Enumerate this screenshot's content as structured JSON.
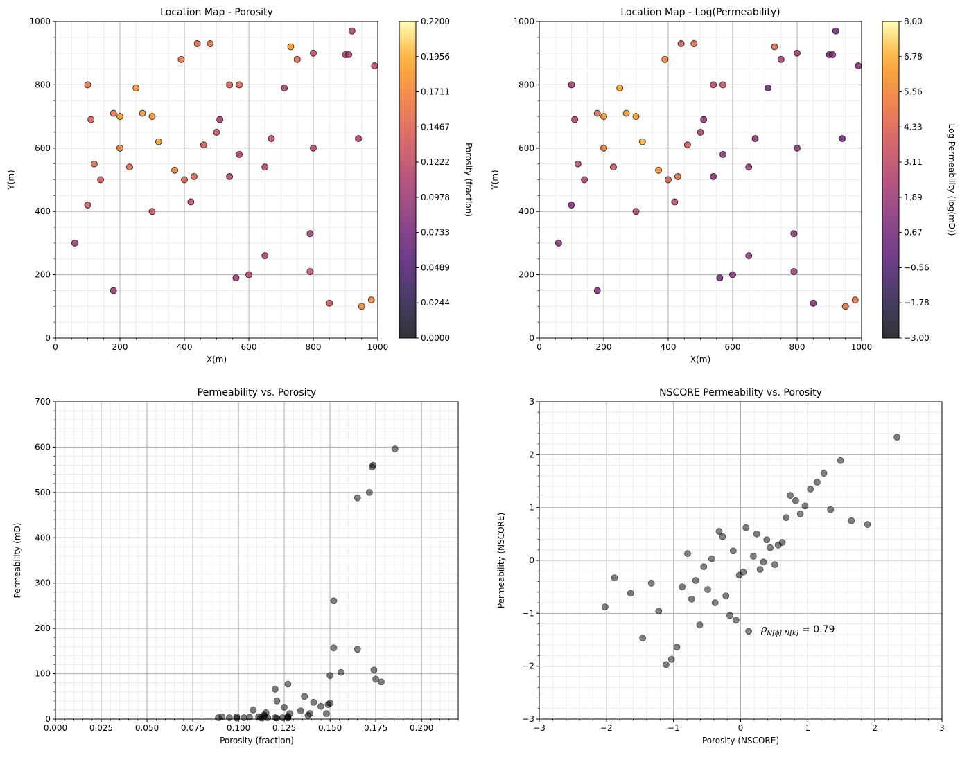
{
  "chart_data": [
    {
      "type": "scatter",
      "title": "Location Map - Porosity",
      "xlabel": "X(m)",
      "ylabel": "Y(m)",
      "xlim": [
        0,
        1000
      ],
      "ylim": [
        0,
        1000
      ],
      "x_ticks": [
        "0",
        "200",
        "400",
        "600",
        "800",
        "1000"
      ],
      "y_ticks": [
        "0",
        "200",
        "400",
        "600",
        "800",
        "1000"
      ],
      "grid": true,
      "colorbar": {
        "label": "Porosity (fraction)",
        "range": [
          0.0,
          0.22
        ],
        "colormap": "inferno",
        "ticks": [
          "0.0000",
          "0.0244",
          "0.0489",
          "0.0733",
          "0.0978",
          "0.1222",
          "0.1467",
          "0.1711",
          "0.1956",
          "0.2200"
        ]
      },
      "points": [
        [
          60,
          300,
          0.1
        ],
        [
          100,
          800,
          0.16
        ],
        [
          100,
          420,
          0.13
        ],
        [
          110,
          690,
          0.15
        ],
        [
          120,
          550,
          0.15
        ],
        [
          140,
          500,
          0.14
        ],
        [
          180,
          710,
          0.16
        ],
        [
          180,
          150,
          0.1
        ],
        [
          200,
          700,
          0.19
        ],
        [
          200,
          600,
          0.17
        ],
        [
          230,
          540,
          0.15
        ],
        [
          250,
          790,
          0.18
        ],
        [
          270,
          710,
          0.18
        ],
        [
          300,
          700,
          0.18
        ],
        [
          300,
          400,
          0.13
        ],
        [
          320,
          620,
          0.19
        ],
        [
          370,
          530,
          0.17
        ],
        [
          390,
          880,
          0.16
        ],
        [
          400,
          500,
          0.15
        ],
        [
          420,
          430,
          0.13
        ],
        [
          430,
          510,
          0.15
        ],
        [
          440,
          930,
          0.15
        ],
        [
          460,
          610,
          0.14
        ],
        [
          480,
          930,
          0.16
        ],
        [
          500,
          650,
          0.13
        ],
        [
          510,
          690,
          0.11
        ],
        [
          540,
          800,
          0.14
        ],
        [
          540,
          510,
          0.11
        ],
        [
          560,
          190,
          0.1
        ],
        [
          570,
          800,
          0.15
        ],
        [
          570,
          580,
          0.11
        ],
        [
          600,
          200,
          0.12
        ],
        [
          650,
          540,
          0.12
        ],
        [
          650,
          260,
          0.11
        ],
        [
          670,
          630,
          0.12
        ],
        [
          710,
          790,
          0.11
        ],
        [
          730,
          920,
          0.19
        ],
        [
          750,
          880,
          0.15
        ],
        [
          790,
          330,
          0.1
        ],
        [
          790,
          210,
          0.13
        ],
        [
          800,
          900,
          0.13
        ],
        [
          800,
          600,
          0.12
        ],
        [
          850,
          110,
          0.14
        ],
        [
          900,
          895,
          0.12
        ],
        [
          910,
          895,
          0.11
        ],
        [
          920,
          970,
          0.11
        ],
        [
          940,
          630,
          0.11
        ],
        [
          950,
          100,
          0.18
        ],
        [
          980,
          120,
          0.17
        ],
        [
          990,
          860,
          0.12
        ]
      ]
    },
    {
      "type": "scatter",
      "title": "Location Map - Log(Permeability)",
      "xlabel": "X(m)",
      "ylabel": "Y(m)",
      "xlim": [
        0,
        1000
      ],
      "ylim": [
        0,
        1000
      ],
      "x_ticks": [
        "0",
        "200",
        "400",
        "600",
        "800",
        "1000"
      ],
      "y_ticks": [
        "0",
        "200",
        "400",
        "600",
        "800",
        "1000"
      ],
      "grid": true,
      "colorbar": {
        "label": "Log Permeability (log(mD))",
        "range": [
          -3.0,
          8.0
        ],
        "colormap": "inferno",
        "ticks": [
          "−3.00",
          "−1.78",
          "−0.56",
          "0.67",
          "1.89",
          "3.11",
          "4.33",
          "5.56",
          "6.78",
          "8.00"
        ]
      },
      "points": [
        [
          60,
          300,
          1.2
        ],
        [
          100,
          800,
          2.2
        ],
        [
          100,
          420,
          1.3
        ],
        [
          110,
          690,
          3.0
        ],
        [
          120,
          550,
          3.2
        ],
        [
          140,
          500,
          2.6
        ],
        [
          180,
          710,
          4.5
        ],
        [
          180,
          150,
          1.3
        ],
        [
          200,
          700,
          6.5
        ],
        [
          200,
          600,
          5.3
        ],
        [
          230,
          540,
          3.6
        ],
        [
          250,
          790,
          6.6
        ],
        [
          270,
          710,
          6.4
        ],
        [
          300,
          700,
          6.5
        ],
        [
          300,
          400,
          2.8
        ],
        [
          320,
          620,
          6.8
        ],
        [
          370,
          530,
          5.8
        ],
        [
          390,
          880,
          5.4
        ],
        [
          400,
          500,
          4.2
        ],
        [
          420,
          430,
          3.0
        ],
        [
          430,
          510,
          4.7
        ],
        [
          440,
          930,
          4.0
        ],
        [
          460,
          610,
          3.6
        ],
        [
          480,
          930,
          4.8
        ],
        [
          500,
          650,
          2.7
        ],
        [
          510,
          690,
          1.6
        ],
        [
          540,
          800,
          3.3
        ],
        [
          540,
          510,
          1.5
        ],
        [
          560,
          190,
          0.9
        ],
        [
          570,
          800,
          3.7
        ],
        [
          570,
          580,
          1.4
        ],
        [
          600,
          200,
          1.4
        ],
        [
          650,
          540,
          2.1
        ],
        [
          650,
          260,
          1.5
        ],
        [
          670,
          630,
          1.3
        ],
        [
          710,
          790,
          0.4
        ],
        [
          730,
          920,
          4.6
        ],
        [
          750,
          880,
          2.3
        ],
        [
          790,
          330,
          1.2
        ],
        [
          790,
          210,
          1.9
        ],
        [
          800,
          900,
          2.2
        ],
        [
          800,
          600,
          1.5
        ],
        [
          850,
          110,
          1.4
        ],
        [
          900,
          895,
          1.0
        ],
        [
          910,
          895,
          1.2
        ],
        [
          920,
          970,
          0.6
        ],
        [
          940,
          630,
          0.3
        ],
        [
          950,
          100,
          5.0
        ],
        [
          980,
          120,
          4.8
        ],
        [
          990,
          860,
          1.2
        ]
      ]
    },
    {
      "type": "scatter",
      "title": "Permeability vs. Porosity",
      "xlabel": "Porosity (fraction)",
      "ylabel": "Permeability (mD)",
      "xlim": [
        0,
        0.22
      ],
      "ylim": [
        0,
        700
      ],
      "x_ticks": [
        "0.000",
        "0.025",
        "0.050",
        "0.075",
        "0.100",
        "0.125",
        "0.150",
        "0.175",
        "0.200"
      ],
      "y_ticks": [
        "0",
        "100",
        "200",
        "300",
        "400",
        "500",
        "600",
        "700"
      ],
      "grid": true,
      "points": [
        [
          0.1855,
          596
        ],
        [
          0.1735,
          560
        ],
        [
          0.173,
          556
        ],
        [
          0.1715,
          500
        ],
        [
          0.165,
          488
        ],
        [
          0.152,
          261
        ],
        [
          0.152,
          157
        ],
        [
          0.165,
          154
        ],
        [
          0.174,
          108
        ],
        [
          0.175,
          88
        ],
        [
          0.178,
          82
        ],
        [
          0.156,
          103
        ],
        [
          0.15,
          96
        ],
        [
          0.127,
          77
        ],
        [
          0.12,
          66
        ],
        [
          0.121,
          40
        ],
        [
          0.136,
          50
        ],
        [
          0.141,
          37
        ],
        [
          0.145,
          28
        ],
        [
          0.149,
          32
        ],
        [
          0.15,
          35
        ],
        [
          0.134,
          18
        ],
        [
          0.139,
          12
        ],
        [
          0.138,
          8
        ],
        [
          0.148,
          12
        ],
        [
          0.108,
          20
        ],
        [
          0.125,
          26
        ],
        [
          0.115,
          14
        ],
        [
          0.114,
          6
        ],
        [
          0.114,
          9
        ],
        [
          0.089,
          3
        ],
        [
          0.091,
          5
        ],
        [
          0.095,
          3
        ],
        [
          0.099,
          5
        ],
        [
          0.103,
          3
        ],
        [
          0.106,
          4
        ],
        [
          0.112,
          3
        ],
        [
          0.113,
          2
        ],
        [
          0.12,
          3
        ],
        [
          0.124,
          3
        ],
        [
          0.127,
          4
        ],
        [
          0.127,
          6
        ],
        [
          0.128,
          12
        ],
        [
          0.127,
          2
        ],
        [
          0.121,
          2
        ],
        [
          0.099,
          2
        ],
        [
          0.111,
          5
        ],
        [
          0.116,
          3
        ]
      ]
    },
    {
      "type": "scatter",
      "title": "NSCORE Permeability vs. Porosity",
      "xlabel": "Porosity (NSCORE)",
      "ylabel": "Permeability (NSCORE)",
      "xlim": [
        -3,
        3
      ],
      "ylim": [
        -3,
        3
      ],
      "x_ticks": [
        "−3",
        "−2",
        "−1",
        "0",
        "1",
        "2",
        "3"
      ],
      "y_ticks": [
        "−3",
        "−2",
        "−1",
        "0",
        "1",
        "2",
        "3"
      ],
      "grid": true,
      "annotation": {
        "text_symbol": "ρ",
        "text_sub": "N[ϕ],N[k]",
        "text_value": " = 0.79",
        "x": 0.3,
        "y": -1.3
      },
      "points": [
        [
          2.33,
          2.33
        ],
        [
          1.49,
          1.89
        ],
        [
          1.24,
          1.65
        ],
        [
          1.14,
          1.48
        ],
        [
          1.04,
          1.35
        ],
        [
          0.74,
          1.23
        ],
        [
          0.82,
          1.13
        ],
        [
          0.96,
          1.03
        ],
        [
          1.34,
          0.96
        ],
        [
          0.89,
          0.88
        ],
        [
          0.68,
          0.81
        ],
        [
          1.65,
          0.75
        ],
        [
          1.89,
          0.68
        ],
        [
          0.08,
          0.62
        ],
        [
          -0.32,
          0.55
        ],
        [
          -0.27,
          0.45
        ],
        [
          0.24,
          0.5
        ],
        [
          0.39,
          0.39
        ],
        [
          0.44,
          0.24
        ],
        [
          0.62,
          0.34
        ],
        [
          0.56,
          0.29
        ],
        [
          -0.79,
          0.13
        ],
        [
          -0.11,
          0.18
        ],
        [
          0.19,
          0.08
        ],
        [
          0.34,
          -0.03
        ],
        [
          -0.43,
          0.03
        ],
        [
          0.51,
          -0.08
        ],
        [
          0.29,
          -0.17
        ],
        [
          -0.55,
          -0.12
        ],
        [
          0.04,
          -0.22
        ],
        [
          -0.02,
          -0.28
        ],
        [
          -1.88,
          -0.33
        ],
        [
          -1.33,
          -0.43
        ],
        [
          -0.67,
          -0.38
        ],
        [
          -0.87,
          -0.5
        ],
        [
          -0.49,
          -0.55
        ],
        [
          -1.64,
          -0.62
        ],
        [
          -0.22,
          -0.67
        ],
        [
          -0.73,
          -0.73
        ],
        [
          -0.38,
          -0.8
        ],
        [
          -1.22,
          -0.96
        ],
        [
          -2.02,
          -0.88
        ],
        [
          -0.16,
          -1.04
        ],
        [
          -0.07,
          -1.13
        ],
        [
          -0.61,
          -1.22
        ],
        [
          0.12,
          -1.34
        ],
        [
          -1.46,
          -1.47
        ],
        [
          -0.95,
          -1.64
        ],
        [
          -1.03,
          -1.87
        ],
        [
          -1.11,
          -1.97
        ]
      ]
    }
  ]
}
